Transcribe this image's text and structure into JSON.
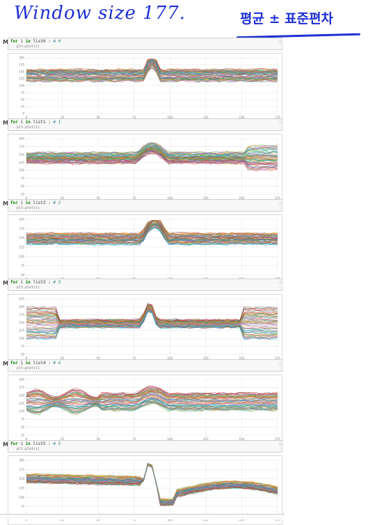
{
  "annotation": {
    "title": "Window size 177.",
    "right": "평균 ± 표준편차"
  },
  "cells": [
    {
      "code_prefix": "for",
      "code_var": "i",
      "code_in": "in",
      "code_list": "list0 :",
      "code_comment": "# 0",
      "code_line2": "plt.plot(i)"
    },
    {
      "code_prefix": "for",
      "code_var": "i",
      "code_in": "in",
      "code_list": "list1 :",
      "code_comment": "# 1",
      "code_line2": "plt.plot(i)"
    },
    {
      "code_prefix": "for",
      "code_var": "i",
      "code_in": "in",
      "code_list": "list2 :",
      "code_comment": "# 2",
      "code_line2": "plt.plot(i)"
    },
    {
      "code_prefix": "for",
      "code_var": "i",
      "code_in": "in",
      "code_list": "list3 :",
      "code_comment": "# 3",
      "code_line2": "plt.plot(i)"
    },
    {
      "code_prefix": "for",
      "code_var": "i",
      "code_in": "in",
      "code_list": "list4 :",
      "code_comment": "# 4",
      "code_line2": "plt.plot(i)"
    },
    {
      "code_prefix": "for",
      "code_var": "i",
      "code_in": "in",
      "code_list": "list5 :",
      "code_comment": "# 5",
      "code_line2": "plt.plot(i)"
    }
  ],
  "run_marker": "M",
  "chart_data": [
    {
      "type": "line",
      "x_ticks": [
        "0",
        "25",
        "50",
        "75",
        "100",
        "125",
        "150",
        "175"
      ],
      "y_ticks": [
        "200",
        "175",
        "150",
        "125",
        "100",
        "75",
        "50",
        "25",
        "0"
      ],
      "ylim": [
        0,
        200
      ],
      "xlim": [
        0,
        177
      ],
      "grid": true,
      "profile": "flat",
      "series_count": "many"
    },
    {
      "type": "line",
      "x_ticks": [
        "0",
        "25",
        "50",
        "75",
        "100",
        "125",
        "150",
        "175"
      ],
      "y_ticks": [
        "200",
        "175",
        "150",
        "125",
        "100",
        "75",
        "50",
        "25"
      ],
      "ylim": [
        25,
        200
      ],
      "xlim": [
        0,
        177
      ],
      "grid": true,
      "profile": "bump-mid",
      "series_count": "many"
    },
    {
      "type": "line",
      "x_ticks": [
        "0",
        "25",
        "50",
        "75",
        "100",
        "125",
        "150",
        "175"
      ],
      "y_ticks": [
        "200",
        "175",
        "150",
        "125",
        "100",
        "75",
        "50"
      ],
      "ylim": [
        50,
        200
      ],
      "xlim": [
        0,
        177
      ],
      "grid": true,
      "profile": "spike-dip",
      "series_count": "many"
    },
    {
      "type": "line",
      "x_ticks": [
        "0",
        "25",
        "50",
        "75",
        "100",
        "125",
        "150",
        "175"
      ],
      "y_ticks": [
        "225",
        "200",
        "175",
        "150",
        "125",
        "100",
        "75",
        "50"
      ],
      "ylim": [
        50,
        225
      ],
      "xlim": [
        0,
        177
      ],
      "grid": true,
      "profile": "spike-edges",
      "series_count": "many"
    },
    {
      "type": "line",
      "x_ticks": [
        "0",
        "25",
        "50",
        "75",
        "100",
        "125",
        "150",
        "175"
      ],
      "y_ticks": [
        "200",
        "175",
        "150",
        "125",
        "100",
        "75",
        "50",
        "25"
      ],
      "ylim": [
        25,
        200
      ],
      "xlim": [
        0,
        177
      ],
      "grid": true,
      "profile": "wide-band",
      "series_count": "many"
    },
    {
      "type": "line",
      "x_ticks": [
        "0",
        "25",
        "50",
        "75",
        "100",
        "125",
        "150",
        "175"
      ],
      "y_ticks": [
        "200",
        "175",
        "150",
        "125",
        "100",
        "75",
        "50"
      ],
      "ylim": [
        50,
        200
      ],
      "xlim": [
        0,
        177
      ],
      "grid": true,
      "profile": "wave",
      "series_count": "many"
    }
  ],
  "colors": {
    "ink": "#1e2fd6",
    "grid": "#e6e6e6",
    "palette": [
      "#1f77b4",
      "#ff7f0e",
      "#2ca02c",
      "#d62728",
      "#9467bd",
      "#8c564b",
      "#e377c2",
      "#7f7f7f",
      "#bcbd22",
      "#17becf"
    ]
  }
}
